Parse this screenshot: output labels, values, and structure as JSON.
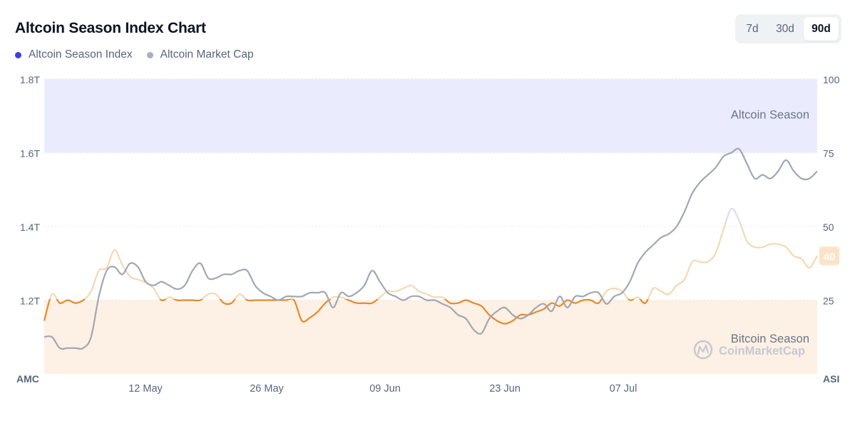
{
  "header": {
    "title": "Altcoin Season Index Chart"
  },
  "legend": [
    {
      "label": "Altcoin Season Index",
      "color": "#3b3ee6"
    },
    {
      "label": "Altcoin Market Cap",
      "color": "#a6b0c3"
    }
  ],
  "range_tabs": [
    {
      "label": "7d",
      "active": false
    },
    {
      "label": "30d",
      "active": false
    },
    {
      "label": "90d",
      "active": true
    }
  ],
  "watermark": {
    "text": "CoinMarketCap",
    "icon": "coinmarketcap-logo-icon"
  },
  "colors": {
    "altcoin_zone": "#eaecfe",
    "bitcoin_zone": "#fdf0e4",
    "index_bitcoin_season": "#e58a2c",
    "index_neutral": "#f3d9b0",
    "index_altcoin_peak": "#d9dcf3",
    "market_cap_line": "#a1a7b3",
    "current_badge_bg": "#fbe3c6",
    "current_badge_text": "#ffffff"
  },
  "chart_data": {
    "type": "line",
    "left_axis": {
      "label": "AMC",
      "ticks": [
        "1.8T",
        "1.6T",
        "1.4T",
        "1.2T"
      ],
      "range": [
        1.0,
        1.8
      ],
      "unit": "T"
    },
    "right_axis": {
      "label": "ASI",
      "ticks": [
        "100",
        "75",
        "50",
        "25"
      ],
      "range": [
        0,
        100
      ]
    },
    "x_ticks": [
      "12 May",
      "26 May",
      "09 Jun",
      "23 Jun",
      "07 Jul"
    ],
    "x_tick_positions_day": [
      12,
      26,
      40,
      54,
      68
    ],
    "x_range_day": [
      0,
      90
    ],
    "zones": [
      {
        "label": "Altcoin Season",
        "from": 75,
        "to": 100
      },
      {
        "label": "Bitcoin Season",
        "from": 0,
        "to": 25
      }
    ],
    "current_value": "40",
    "series": [
      {
        "name": "Altcoin Season Index",
        "axis": "right",
        "points": [
          [
            0,
            18
          ],
          [
            1,
            27
          ],
          [
            2,
            24
          ],
          [
            3,
            25
          ],
          [
            4,
            24
          ],
          [
            5,
            25
          ],
          [
            6,
            28
          ],
          [
            7,
            35
          ],
          [
            8,
            36
          ],
          [
            9,
            42
          ],
          [
            10,
            37
          ],
          [
            11,
            33
          ],
          [
            12,
            32
          ],
          [
            13,
            31
          ],
          [
            14,
            29
          ],
          [
            15,
            25
          ],
          [
            16,
            26
          ],
          [
            17,
            25
          ],
          [
            18,
            25
          ],
          [
            19,
            25
          ],
          [
            20,
            25
          ],
          [
            21,
            27
          ],
          [
            22,
            27
          ],
          [
            23,
            24
          ],
          [
            24,
            24
          ],
          [
            25,
            27
          ],
          [
            26,
            25
          ],
          [
            27,
            25
          ],
          [
            28,
            25
          ],
          [
            29,
            25
          ],
          [
            30,
            25
          ],
          [
            31,
            25
          ],
          [
            32,
            25
          ],
          [
            33,
            18
          ],
          [
            34,
            19
          ],
          [
            35,
            21
          ],
          [
            36,
            24
          ],
          [
            37,
            26
          ],
          [
            38,
            26
          ],
          [
            39,
            25
          ],
          [
            40,
            24
          ],
          [
            41,
            24
          ],
          [
            42,
            24
          ],
          [
            43,
            26
          ],
          [
            44,
            28
          ],
          [
            45,
            28
          ],
          [
            46,
            29
          ],
          [
            47,
            30
          ],
          [
            48,
            28
          ],
          [
            49,
            27
          ],
          [
            50,
            26
          ],
          [
            51,
            26
          ],
          [
            52,
            24
          ],
          [
            53,
            24
          ],
          [
            54,
            25
          ],
          [
            55,
            24
          ],
          [
            56,
            23
          ],
          [
            57,
            20
          ],
          [
            58,
            18
          ],
          [
            59,
            17
          ],
          [
            60,
            18
          ],
          [
            61,
            20
          ],
          [
            62,
            20
          ],
          [
            63,
            21
          ],
          [
            64,
            22
          ],
          [
            65,
            24
          ],
          [
            66,
            23
          ],
          [
            67,
            25
          ],
          [
            68,
            24
          ],
          [
            69,
            25
          ],
          [
            70,
            25
          ],
          [
            71,
            24
          ],
          [
            72,
            28
          ],
          [
            73,
            29
          ],
          [
            74,
            28
          ],
          [
            75,
            25
          ],
          [
            76,
            26
          ],
          [
            77,
            24
          ],
          [
            78,
            29
          ],
          [
            79,
            28
          ],
          [
            80,
            27
          ],
          [
            81,
            30
          ],
          [
            82,
            32
          ],
          [
            83,
            38
          ],
          [
            84,
            38
          ],
          [
            85,
            38
          ],
          [
            86,
            41
          ],
          [
            87,
            49
          ],
          [
            88,
            56
          ],
          [
            89,
            52
          ],
          [
            90,
            45
          ],
          [
            91,
            43
          ],
          [
            92,
            43
          ],
          [
            93,
            44
          ],
          [
            94,
            44
          ],
          [
            95,
            43
          ],
          [
            96,
            40
          ],
          [
            97,
            39
          ],
          [
            98,
            36
          ],
          [
            99,
            40
          ]
        ]
      },
      {
        "name": "Altcoin Market Cap",
        "axis": "left",
        "points": [
          [
            0,
            1.1
          ],
          [
            1,
            1.1
          ],
          [
            2,
            1.07
          ],
          [
            3,
            1.07
          ],
          [
            4,
            1.07
          ],
          [
            5,
            1.07
          ],
          [
            6,
            1.1
          ],
          [
            7,
            1.21
          ],
          [
            8,
            1.28
          ],
          [
            9,
            1.29
          ],
          [
            10,
            1.27
          ],
          [
            11,
            1.3
          ],
          [
            12,
            1.29
          ],
          [
            13,
            1.25
          ],
          [
            14,
            1.24
          ],
          [
            15,
            1.25
          ],
          [
            16,
            1.24
          ],
          [
            17,
            1.23
          ],
          [
            18,
            1.24
          ],
          [
            19,
            1.28
          ],
          [
            20,
            1.3
          ],
          [
            21,
            1.26
          ],
          [
            22,
            1.26
          ],
          [
            23,
            1.27
          ],
          [
            24,
            1.27
          ],
          [
            25,
            1.28
          ],
          [
            26,
            1.28
          ],
          [
            27,
            1.24
          ],
          [
            28,
            1.22
          ],
          [
            29,
            1.21
          ],
          [
            30,
            1.2
          ],
          [
            31,
            1.21
          ],
          [
            32,
            1.21
          ],
          [
            33,
            1.21
          ],
          [
            34,
            1.22
          ],
          [
            35,
            1.22
          ],
          [
            36,
            1.22
          ],
          [
            37,
            1.18
          ],
          [
            38,
            1.22
          ],
          [
            39,
            1.21
          ],
          [
            40,
            1.22
          ],
          [
            41,
            1.24
          ],
          [
            42,
            1.28
          ],
          [
            43,
            1.25
          ],
          [
            44,
            1.22
          ],
          [
            45,
            1.21
          ],
          [
            46,
            1.2
          ],
          [
            47,
            1.21
          ],
          [
            48,
            1.21
          ],
          [
            49,
            1.2
          ],
          [
            50,
            1.2
          ],
          [
            51,
            1.19
          ],
          [
            52,
            1.18
          ],
          [
            53,
            1.16
          ],
          [
            54,
            1.15
          ],
          [
            55,
            1.12
          ],
          [
            56,
            1.11
          ],
          [
            57,
            1.15
          ],
          [
            58,
            1.17
          ],
          [
            59,
            1.18
          ],
          [
            60,
            1.16
          ],
          [
            61,
            1.15
          ],
          [
            62,
            1.16
          ],
          [
            63,
            1.18
          ],
          [
            64,
            1.19
          ],
          [
            65,
            1.17
          ],
          [
            66,
            1.21
          ],
          [
            67,
            1.18
          ],
          [
            68,
            1.21
          ],
          [
            69,
            1.21
          ],
          [
            70,
            1.22
          ],
          [
            71,
            1.22
          ],
          [
            72,
            1.19
          ],
          [
            73,
            1.21
          ],
          [
            74,
            1.22
          ],
          [
            75,
            1.25
          ],
          [
            76,
            1.3
          ],
          [
            77,
            1.33
          ],
          [
            78,
            1.35
          ],
          [
            79,
            1.37
          ],
          [
            80,
            1.38
          ],
          [
            81,
            1.4
          ],
          [
            82,
            1.44
          ],
          [
            83,
            1.49
          ],
          [
            84,
            1.52
          ],
          [
            85,
            1.54
          ],
          [
            86,
            1.56
          ],
          [
            87,
            1.59
          ],
          [
            88,
            1.6
          ],
          [
            89,
            1.61
          ],
          [
            90,
            1.57
          ],
          [
            91,
            1.53
          ],
          [
            92,
            1.54
          ],
          [
            93,
            1.53
          ],
          [
            94,
            1.55
          ],
          [
            95,
            1.58
          ],
          [
            96,
            1.55
          ],
          [
            97,
            1.53
          ],
          [
            98,
            1.53
          ],
          [
            99,
            1.55
          ]
        ]
      }
    ]
  }
}
